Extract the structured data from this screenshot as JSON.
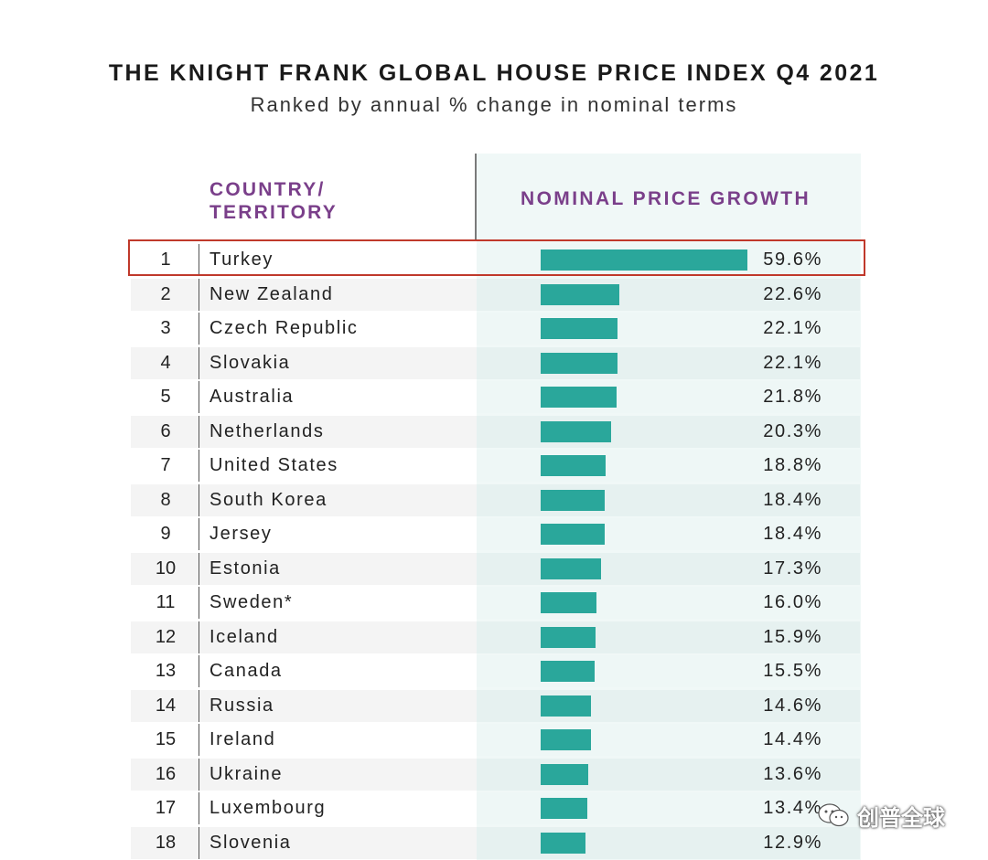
{
  "title": "THE KNIGHT FRANK GLOBAL HOUSE PRICE INDEX Q4 2021",
  "subtitle": "Ranked by annual % change in nominal terms",
  "headers": {
    "country_line1": "COUNTRY/",
    "country_line2": "TERRITORY",
    "growth": "NOMINAL PRICE GROWTH"
  },
  "watermark": "创普全球",
  "colors": {
    "bar": "#2aa79b",
    "header": "#7a3f8a",
    "highlight": "#c0392b"
  },
  "chart_data": {
    "type": "bar",
    "orientation": "horizontal",
    "title": "THE KNIGHT FRANK GLOBAL HOUSE PRICE INDEX Q4 2021",
    "subtitle": "Ranked by annual % change in nominal terms",
    "xlabel": "NOMINAL PRICE GROWTH",
    "ylabel": "COUNTRY/ TERRITORY",
    "xlim": [
      0,
      59.6
    ],
    "highlighted_rank": 1,
    "rows": [
      {
        "rank": "1",
        "country": "Turkey",
        "value": 59.6,
        "label": "59.6%"
      },
      {
        "rank": "2",
        "country": "New Zealand",
        "value": 22.6,
        "label": "22.6%"
      },
      {
        "rank": "3",
        "country": "Czech Republic",
        "value": 22.1,
        "label": "22.1%"
      },
      {
        "rank": "4",
        "country": "Slovakia",
        "value": 22.1,
        "label": "22.1%"
      },
      {
        "rank": "5",
        "country": "Australia",
        "value": 21.8,
        "label": "21.8%"
      },
      {
        "rank": "6",
        "country": "Netherlands",
        "value": 20.3,
        "label": "20.3%"
      },
      {
        "rank": "7",
        "country": "United States",
        "value": 18.8,
        "label": "18.8%"
      },
      {
        "rank": "8",
        "country": "South Korea",
        "value": 18.4,
        "label": "18.4%"
      },
      {
        "rank": "9",
        "country": "Jersey",
        "value": 18.4,
        "label": "18.4%"
      },
      {
        "rank": "10",
        "country": "Estonia",
        "value": 17.3,
        "label": "17.3%"
      },
      {
        "rank": "11",
        "country": "Sweden*",
        "value": 16.0,
        "label": "16.0%"
      },
      {
        "rank": "12",
        "country": "Iceland",
        "value": 15.9,
        "label": "15.9%"
      },
      {
        "rank": "13",
        "country": "Canada",
        "value": 15.5,
        "label": "15.5%"
      },
      {
        "rank": "14",
        "country": "Russia",
        "value": 14.6,
        "label": "14.6%"
      },
      {
        "rank": "15",
        "country": "Ireland",
        "value": 14.4,
        "label": "14.4%"
      },
      {
        "rank": "16",
        "country": "Ukraine",
        "value": 13.6,
        "label": "13.6%"
      },
      {
        "rank": "17",
        "country": "Luxembourg",
        "value": 13.4,
        "label": "13.4%"
      },
      {
        "rank": "18",
        "country": "Slovenia",
        "value": 12.9,
        "label": "12.9%"
      }
    ]
  }
}
